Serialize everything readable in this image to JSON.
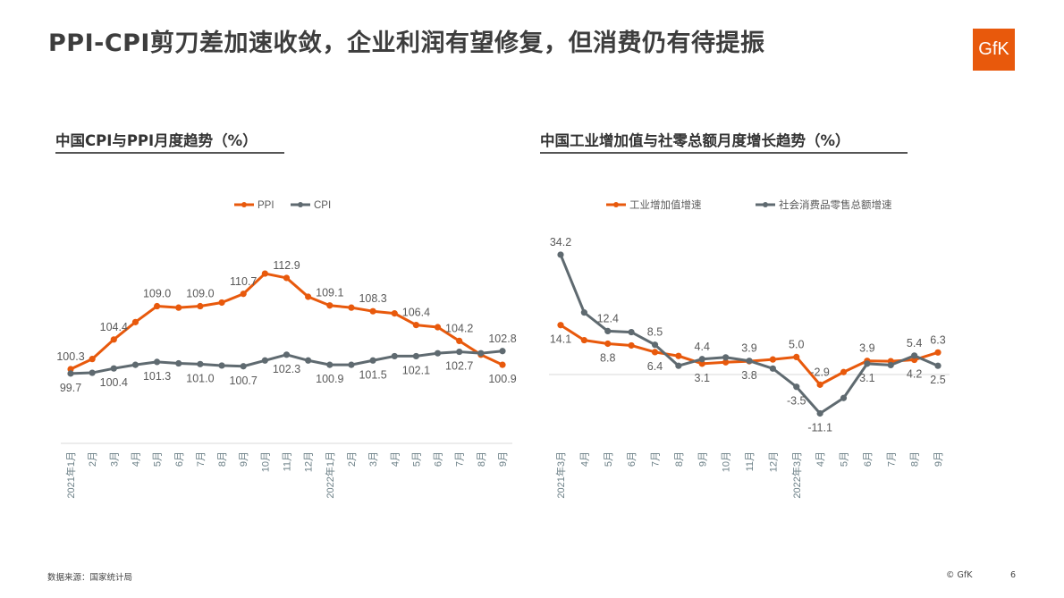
{
  "page": {
    "title": "PPI-CPI剪刀差加速收敛，企业利润有望修复，但消费仍有待提振",
    "logo_text": "GfK",
    "source": "数据来源：国家统计局",
    "copyright": "© GfK",
    "page_number": "6"
  },
  "colors": {
    "orange": "#e8590c",
    "gray": "#5f6a70",
    "axis": "#d9d9d9",
    "text": "#595959",
    "tick_text": "#6b7f86"
  },
  "chart_data": [
    {
      "type": "line",
      "title": "中国CPI与PPI月度趋势（%）",
      "legend_position": "top",
      "grid": false,
      "categories": [
        "2021年1月",
        "2月",
        "3月",
        "4月",
        "5月",
        "6月",
        "7月",
        "8月",
        "9月",
        "10月",
        "11月",
        "12月",
        "2022年1月",
        "2月",
        "3月",
        "4月",
        "5月",
        "6月",
        "7月",
        "8月",
        "9月"
      ],
      "series": [
        {
          "name": "PPI",
          "color": "#e8590c",
          "values": [
            100.3,
            101.7,
            104.4,
            106.8,
            109.0,
            108.8,
            109.0,
            109.5,
            110.7,
            113.5,
            112.9,
            110.3,
            109.1,
            108.8,
            108.3,
            108.0,
            106.4,
            106.1,
            104.2,
            102.3,
            100.9
          ],
          "data_labels": [
            "100.3",
            null,
            "104.4",
            null,
            "109.0",
            null,
            "109.0",
            null,
            "110.7",
            null,
            "112.9",
            null,
            "109.1",
            null,
            "108.3",
            null,
            "106.4",
            null,
            "104.2",
            null,
            "100.9"
          ]
        },
        {
          "name": "CPI",
          "color": "#5f6a70",
          "values": [
            99.7,
            99.8,
            100.4,
            100.9,
            101.3,
            101.1,
            101.0,
            100.8,
            100.7,
            101.5,
            102.3,
            101.5,
            100.9,
            100.9,
            101.5,
            102.1,
            102.1,
            102.5,
            102.7,
            102.5,
            102.8
          ],
          "data_labels": [
            "99.7",
            null,
            "100.4",
            null,
            "101.3",
            null,
            "101.0",
            null,
            "100.7",
            null,
            "102.3",
            null,
            "100.9",
            null,
            "101.5",
            null,
            "102.1",
            null,
            "102.7",
            null,
            "102.8"
          ]
        }
      ]
    },
    {
      "type": "line",
      "title": "中国工业增加值与社零总额月度增长趋势（%）",
      "legend_position": "top",
      "grid": false,
      "categories": [
        "2021年3月",
        "4月",
        "5月",
        "6月",
        "7月",
        "8月",
        "9月",
        "10月",
        "11月",
        "12月",
        "2022年3月",
        "4月",
        "5月",
        "6月",
        "7月",
        "8月",
        "9月"
      ],
      "series": [
        {
          "name": "工业增加值增速",
          "color": "#e8590c",
          "values": [
            14.1,
            9.8,
            8.8,
            8.3,
            6.4,
            5.3,
            3.1,
            3.5,
            3.8,
            4.3,
            5.0,
            -2.9,
            0.7,
            3.9,
            3.8,
            4.2,
            6.3
          ],
          "data_labels": [
            "14.1",
            null,
            "8.8",
            null,
            "6.4",
            null,
            "3.1",
            null,
            "3.8",
            null,
            "5.0",
            "-2.9",
            null,
            "3.9",
            null,
            "4.2",
            "6.3"
          ]
        },
        {
          "name": "社会消费品零售总额增速",
          "color": "#5f6a70",
          "values": [
            34.2,
            17.7,
            12.4,
            12.1,
            8.5,
            2.5,
            4.4,
            4.9,
            3.9,
            1.7,
            -3.5,
            -11.1,
            -6.7,
            3.1,
            2.7,
            5.4,
            2.5
          ],
          "data_labels": [
            "34.2",
            null,
            "12.4",
            null,
            "8.5",
            null,
            "4.4",
            null,
            "3.9",
            null,
            "-3.5",
            "-11.1",
            null,
            "3.1",
            null,
            "5.4",
            "2.5"
          ]
        }
      ]
    }
  ]
}
